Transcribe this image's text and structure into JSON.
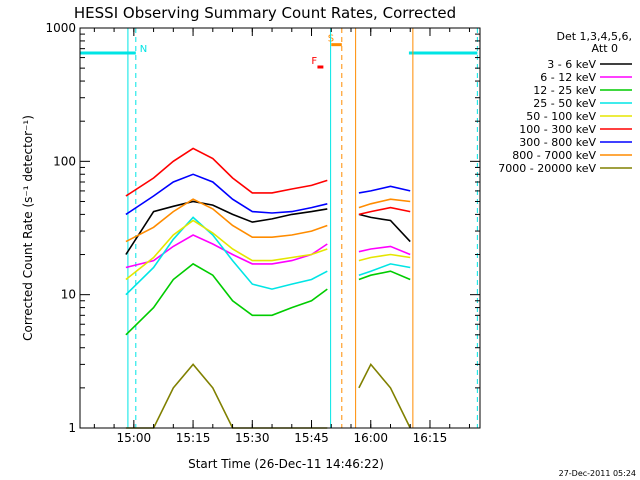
{
  "chart_data": {
    "type": "line",
    "title": "HESSI Observing Summary Count Rates, Corrected",
    "xlabel": "Start Time (26-Dec-11 14:46:22)",
    "ylabel": "Corrected Count Rate (s⁻¹ detector⁻¹)",
    "yscale": "log",
    "ylim": [
      1,
      1000
    ],
    "xlim": [
      "14:46:22",
      "16:27:40"
    ],
    "x_ticks": [
      "15:00",
      "15:15",
      "15:30",
      "15:45",
      "16:00",
      "16:15"
    ],
    "y_ticks": [
      "1",
      "10",
      "100",
      "1000"
    ],
    "legend_title": [
      "Det 1,3,4,5,6,",
      "Att 0"
    ],
    "legend_position": "top-right",
    "timestamp": "27-Dec-2011 05:24",
    "x_minutes_note": "x values are clock times; segments are observation intervals",
    "segments": [
      {
        "start": "14:58:30",
        "end": "15:49:50"
      },
      {
        "start": "15:56:10",
        "end": "16:10:40"
      }
    ],
    "series": [
      {
        "name": "3 - 6 keV",
        "color": "#000000",
        "x": [
          "14:58",
          "15:05",
          "15:10",
          "15:15",
          "15:20",
          "15:25",
          "15:30",
          "15:35",
          "15:40",
          "15:45",
          "15:49",
          "15:57",
          "16:00",
          "16:05",
          "16:10"
        ],
        "y": [
          20,
          42,
          46,
          50,
          47,
          40,
          35,
          37,
          40,
          42,
          44,
          40,
          38,
          36,
          25
        ]
      },
      {
        "name": "6 - 12 keV",
        "color": "#ff00ff",
        "x": [
          "14:58",
          "15:05",
          "15:10",
          "15:15",
          "15:20",
          "15:25",
          "15:30",
          "15:35",
          "15:40",
          "15:45",
          "15:49",
          "15:57",
          "16:00",
          "16:05",
          "16:10"
        ],
        "y": [
          16,
          18,
          23,
          28,
          24,
          20,
          17,
          17,
          18,
          20,
          24,
          21,
          22,
          23,
          20
        ]
      },
      {
        "name": "12 - 25 keV",
        "color": "#00cc00",
        "x": [
          "14:58",
          "15:05",
          "15:10",
          "15:15",
          "15:20",
          "15:25",
          "15:30",
          "15:35",
          "15:40",
          "15:45",
          "15:49",
          "15:57",
          "16:00",
          "16:05",
          "16:10"
        ],
        "y": [
          5,
          8,
          13,
          17,
          14,
          9,
          7,
          7,
          8,
          9,
          11,
          13,
          14,
          15,
          13
        ]
      },
      {
        "name": "25 - 50 keV",
        "color": "#00e5e5",
        "x": [
          "14:58",
          "15:05",
          "15:10",
          "15:15",
          "15:20",
          "15:25",
          "15:30",
          "15:35",
          "15:40",
          "15:45",
          "15:49",
          "15:57",
          "16:00",
          "16:05",
          "16:10"
        ],
        "y": [
          10,
          16,
          26,
          38,
          28,
          18,
          12,
          11,
          12,
          13,
          15,
          14,
          15,
          17,
          16
        ]
      },
      {
        "name": "50 - 100 keV",
        "color": "#e5e500",
        "x": [
          "14:58",
          "15:05",
          "15:10",
          "15:15",
          "15:20",
          "15:25",
          "15:30",
          "15:35",
          "15:40",
          "15:45",
          "15:49",
          "15:57",
          "16:00",
          "16:05",
          "16:10"
        ],
        "y": [
          13,
          19,
          28,
          36,
          29,
          22,
          18,
          18,
          19,
          20,
          22,
          18,
          19,
          20,
          19
        ]
      },
      {
        "name": "100 - 300 keV",
        "color": "#ff0000",
        "x": [
          "14:58",
          "15:05",
          "15:10",
          "15:15",
          "15:20",
          "15:25",
          "15:30",
          "15:35",
          "15:40",
          "15:45",
          "15:49",
          "15:57",
          "16:00",
          "16:05",
          "16:10"
        ],
        "y": [
          55,
          75,
          100,
          125,
          105,
          75,
          58,
          58,
          62,
          66,
          72,
          40,
          42,
          45,
          42
        ]
      },
      {
        "name": "300 - 800 keV",
        "color": "#0000ff",
        "x": [
          "14:58",
          "15:05",
          "15:10",
          "15:15",
          "15:20",
          "15:25",
          "15:30",
          "15:35",
          "15:40",
          "15:45",
          "15:49",
          "15:57",
          "16:00",
          "16:05",
          "16:10"
        ],
        "y": [
          40,
          55,
          70,
          80,
          70,
          52,
          42,
          41,
          42,
          45,
          48,
          58,
          60,
          65,
          60
        ]
      },
      {
        "name": "800 - 7000 keV",
        "color": "#ff8c00",
        "x": [
          "14:58",
          "15:05",
          "15:10",
          "15:15",
          "15:20",
          "15:25",
          "15:30",
          "15:35",
          "15:40",
          "15:45",
          "15:49",
          "15:57",
          "16:00",
          "16:05",
          "16:10"
        ],
        "y": [
          25,
          32,
          42,
          52,
          44,
          33,
          27,
          27,
          28,
          30,
          33,
          45,
          48,
          52,
          50
        ]
      },
      {
        "name": "7000 - 20000 keV",
        "color": "#808000",
        "x": [
          "14:58",
          "15:05",
          "15:10",
          "15:15",
          "15:20",
          "15:25",
          "15:30",
          "15:35",
          "15:40",
          "15:45",
          "15:49",
          "15:57",
          "16:00",
          "16:05",
          "16:10"
        ],
        "y": [
          1,
          1,
          2,
          3,
          2,
          1,
          1,
          1,
          1,
          1,
          1,
          2,
          3,
          2,
          1
        ]
      }
    ],
    "flags": [
      {
        "label": "N",
        "color": "#00e5e5",
        "level": 650,
        "ranges": [
          [
            "14:46:22",
            "15:00:30"
          ],
          [
            "16:09:40",
            "16:27:00"
          ]
        ],
        "markers": [
          "15:00:30",
          "16:27:00"
        ]
      },
      {
        "label": "S",
        "color": "#ff8c00",
        "level": 750,
        "ranges": [
          [
            "15:50:00",
            "15:52:40"
          ]
        ],
        "markers": [
          "15:52:40"
        ]
      },
      {
        "label": "F",
        "color": "#ff0000",
        "level": 510,
        "ranges": [
          [
            "15:46:30",
            "15:48:00"
          ]
        ],
        "markers": []
      }
    ]
  }
}
